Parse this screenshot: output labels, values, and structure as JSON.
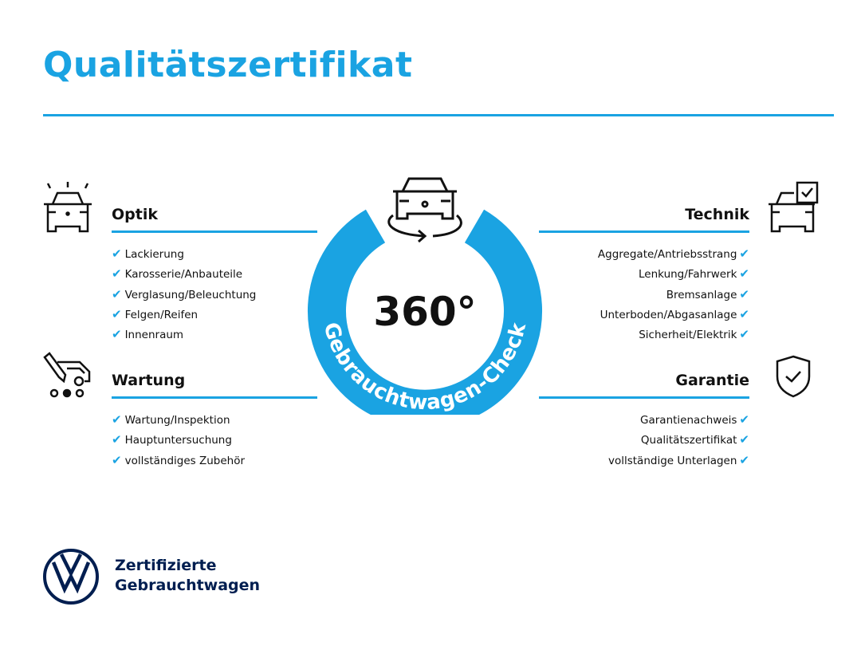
{
  "title": "Qualitätszertifikat",
  "colors": {
    "accent": "#1aa3e2",
    "brand_navy": "#001e50"
  },
  "center": {
    "big_text": "360°",
    "ring_text": "Gebrauchtwagen-Check",
    "icon": "car-rotate-icon"
  },
  "sections": {
    "optik": {
      "heading": "Optik",
      "icon": "car-lights-icon",
      "items": [
        "Lackierung",
        "Karosserie/Anbauteile",
        "Verglasung/Beleuchtung",
        "Felgen/Reifen",
        "Innenraum"
      ]
    },
    "wartung": {
      "heading": "Wartung",
      "icon": "car-service-icon",
      "items": [
        "Wartung/Inspektion",
        "Hauptuntersuchung",
        "vollständiges Zubehör"
      ]
    },
    "technik": {
      "heading": "Technik",
      "icon": "car-checkbox-icon",
      "items": [
        "Aggregate/Antriebsstrang",
        "Lenkung/Fahrwerk",
        "Bremsanlage",
        "Unterboden/Abgasanlage",
        "Sicherheit/Elektrik"
      ]
    },
    "garantie": {
      "heading": "Garantie",
      "icon": "shield-check-icon",
      "items": [
        "Garantienachweis",
        "Qualitätszertifikat",
        "vollständige Unterlagen"
      ]
    }
  },
  "check_mark": "✔",
  "brand": {
    "line1": "Zertifizierte",
    "line2": "Gebrauchtwagen",
    "logo": "VW"
  }
}
